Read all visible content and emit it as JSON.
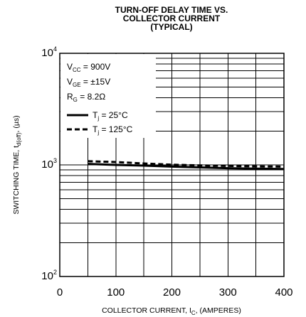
{
  "chart_data": {
    "type": "line",
    "title": [
      "TURN-OFF DELAY TIME VS.",
      "COLLECTOR CURRENT",
      "(TYPICAL)"
    ],
    "xlabel": {
      "text": "COLLECTOR CURRENT, I",
      "sub": "C",
      "suffix": ", (AMPERES)"
    },
    "ylabel": {
      "text": "SWITCHING TIME, t",
      "sub": "d(off)",
      "suffix": ", (µs)"
    },
    "x_scale": "linear",
    "y_scale": "log",
    "xlim": [
      0,
      400
    ],
    "ylim": [
      100,
      10000
    ],
    "x_ticks": [
      0,
      100,
      200,
      300,
      400
    ],
    "x_tick_labels": [
      "0",
      "100",
      "200",
      "300",
      "400"
    ],
    "y_ticks": [
      100,
      1000,
      10000
    ],
    "y_tick_labels": [
      {
        "base": "10",
        "exp": "2"
      },
      {
        "base": "10",
        "exp": "3"
      },
      {
        "base": "10",
        "exp": "4"
      }
    ],
    "grid": true,
    "legend_position": "top-left",
    "conditions": [
      {
        "main": "V",
        "sub": "CC",
        "rest": " = 900V"
      },
      {
        "main": "V",
        "sub": "GE",
        "rest": " = ±15V"
      },
      {
        "main": "R",
        "sub": "G",
        "rest": " = 8.2Ω"
      }
    ],
    "series": [
      {
        "name": {
          "main": "T",
          "sub": "j",
          "rest": " = 25°C"
        },
        "style": "solid",
        "x": [
          50,
          100,
          150,
          200,
          250,
          300,
          350,
          400
        ],
        "y": [
          1020,
          1000,
          985,
          965,
          950,
          935,
          925,
          920
        ]
      },
      {
        "name": {
          "main": "T",
          "sub": "j",
          "rest": " = 125°C"
        },
        "style": "dashed",
        "x": [
          50,
          100,
          150,
          200,
          250,
          300,
          350,
          400
        ],
        "y": [
          1080,
          1060,
          1030,
          1005,
          990,
          980,
          970,
          965
        ]
      }
    ],
    "colors": {
      "line": "#000000",
      "grid": "#000000",
      "background": "#ffffff"
    }
  }
}
